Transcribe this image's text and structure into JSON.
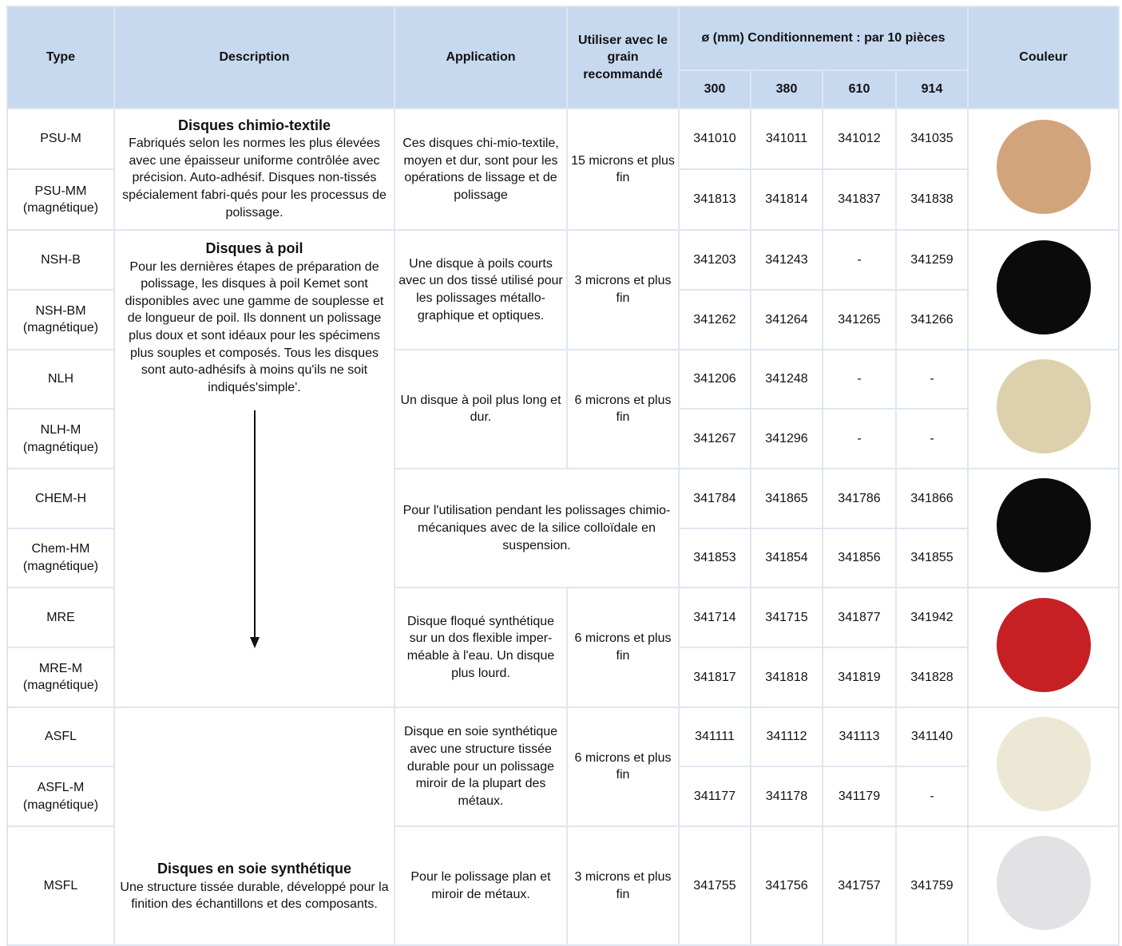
{
  "header": {
    "type": "Type",
    "description": "Description",
    "application": "Application",
    "grain": "Utiliser avec le grain recommandé",
    "conditionnement": "ø (mm) Conditionnement : par 10 pièces",
    "diameters": [
      "300",
      "380",
      "610",
      "914"
    ],
    "couleur": "Couleur"
  },
  "groups": {
    "chimio": {
      "title": "Disques chimio-textile",
      "text": "Fabriqués selon les normes les plus élevées avec une épaisseur uniforme contrôlée avec précision. Auto-adhésif. Disques non-tissés spécialement fabri-qués pour les processus de polissage."
    },
    "poil": {
      "title": "Disques à poil",
      "text": "Pour les dernières étapes de préparation de polissage, les disques à poil Kemet sont disponibles avec une gamme de souplesse et de longueur de poil. Ils donnent un polissage plus doux et sont idéaux pour les spécimens plus souples et composés. Tous les disques sont auto-adhésifs à moins qu'ils ne soit indiqués'simple'."
    },
    "soie": {
      "title": "Disques en soie synthétique",
      "text": "Une structure tissée durable, développé pour la finition des échantillons et des composants."
    }
  },
  "applications": {
    "psu": "Ces disques chi-mio-textile, moyen et dur, sont pour les opérations de lissage et de polissage",
    "nsh": "Une disque à poils courts avec un dos tissé utilisé pour les polissages métallo-graphique et optiques.",
    "nlh": "Un disque à poil plus long et dur.",
    "chem": "Pour l'utilisation pendant les polissages chimio-mécaniques avec de la silice colloïdale en suspension.",
    "mre": "Disque floqué synthétique sur un dos flexible imper-méable à l'eau. Un disque plus lourd.",
    "asfl": "Disque en soie synthétique avec une structure tissée durable pour un polissage miroir de la plupart des métaux.",
    "msfl": "Pour le polissage plan et miroir de métaux."
  },
  "grains": {
    "psu": "15 microns et plus fin",
    "nsh": "3 microns et plus fin",
    "nlh": "6 microns et plus fin",
    "mre": "6 microns et plus fin",
    "asfl": "6 microns et plus fin",
    "msfl": "3 microns et plus fin"
  },
  "rows": [
    {
      "type": "PSU-M",
      "codes": [
        "341010",
        "341011",
        "341012",
        "341035"
      ]
    },
    {
      "type": "PSU-MM (magnétique)",
      "codes": [
        "341813",
        "341814",
        "341837",
        "341838"
      ]
    },
    {
      "type": "NSH-B",
      "codes": [
        "341203",
        "341243",
        "-",
        "341259"
      ]
    },
    {
      "type": "NSH-BM (magnétique)",
      "codes": [
        "341262",
        "341264",
        "341265",
        "341266"
      ]
    },
    {
      "type": "NLH",
      "codes": [
        "341206",
        "341248",
        "-",
        "-"
      ]
    },
    {
      "type": "NLH-M (magnétique)",
      "codes": [
        "341267",
        "341296",
        "-",
        "-"
      ]
    },
    {
      "type": "CHEM-H",
      "codes": [
        "341784",
        "341865",
        "341786",
        "341866"
      ]
    },
    {
      "type": "Chem-HM (magnétique)",
      "codes": [
        "341853",
        "341854",
        "341856",
        "341855"
      ]
    },
    {
      "type": "MRE",
      "codes": [
        "341714",
        "341715",
        "341877",
        "341942"
      ]
    },
    {
      "type": "MRE-M (magnétique)",
      "codes": [
        "341817",
        "341818",
        "341819",
        "341828"
      ]
    },
    {
      "type": "ASFL",
      "codes": [
        "341111",
        "341112",
        "341113",
        "341140"
      ]
    },
    {
      "type": "ASFL-M (magnétique)",
      "codes": [
        "341177",
        "341178",
        "341179",
        "-"
      ]
    },
    {
      "type": "MSFL",
      "codes": [
        "341755",
        "341756",
        "341757",
        "341759"
      ]
    }
  ],
  "colors": {
    "psu": "#d2a47c",
    "nsh": "#0b0b0b",
    "nlh": "#dcd1ac",
    "chem": "#0b0b0b",
    "mre": "#c62025",
    "asfl": "#ede7d6",
    "msfl": "#e2e2e4"
  }
}
